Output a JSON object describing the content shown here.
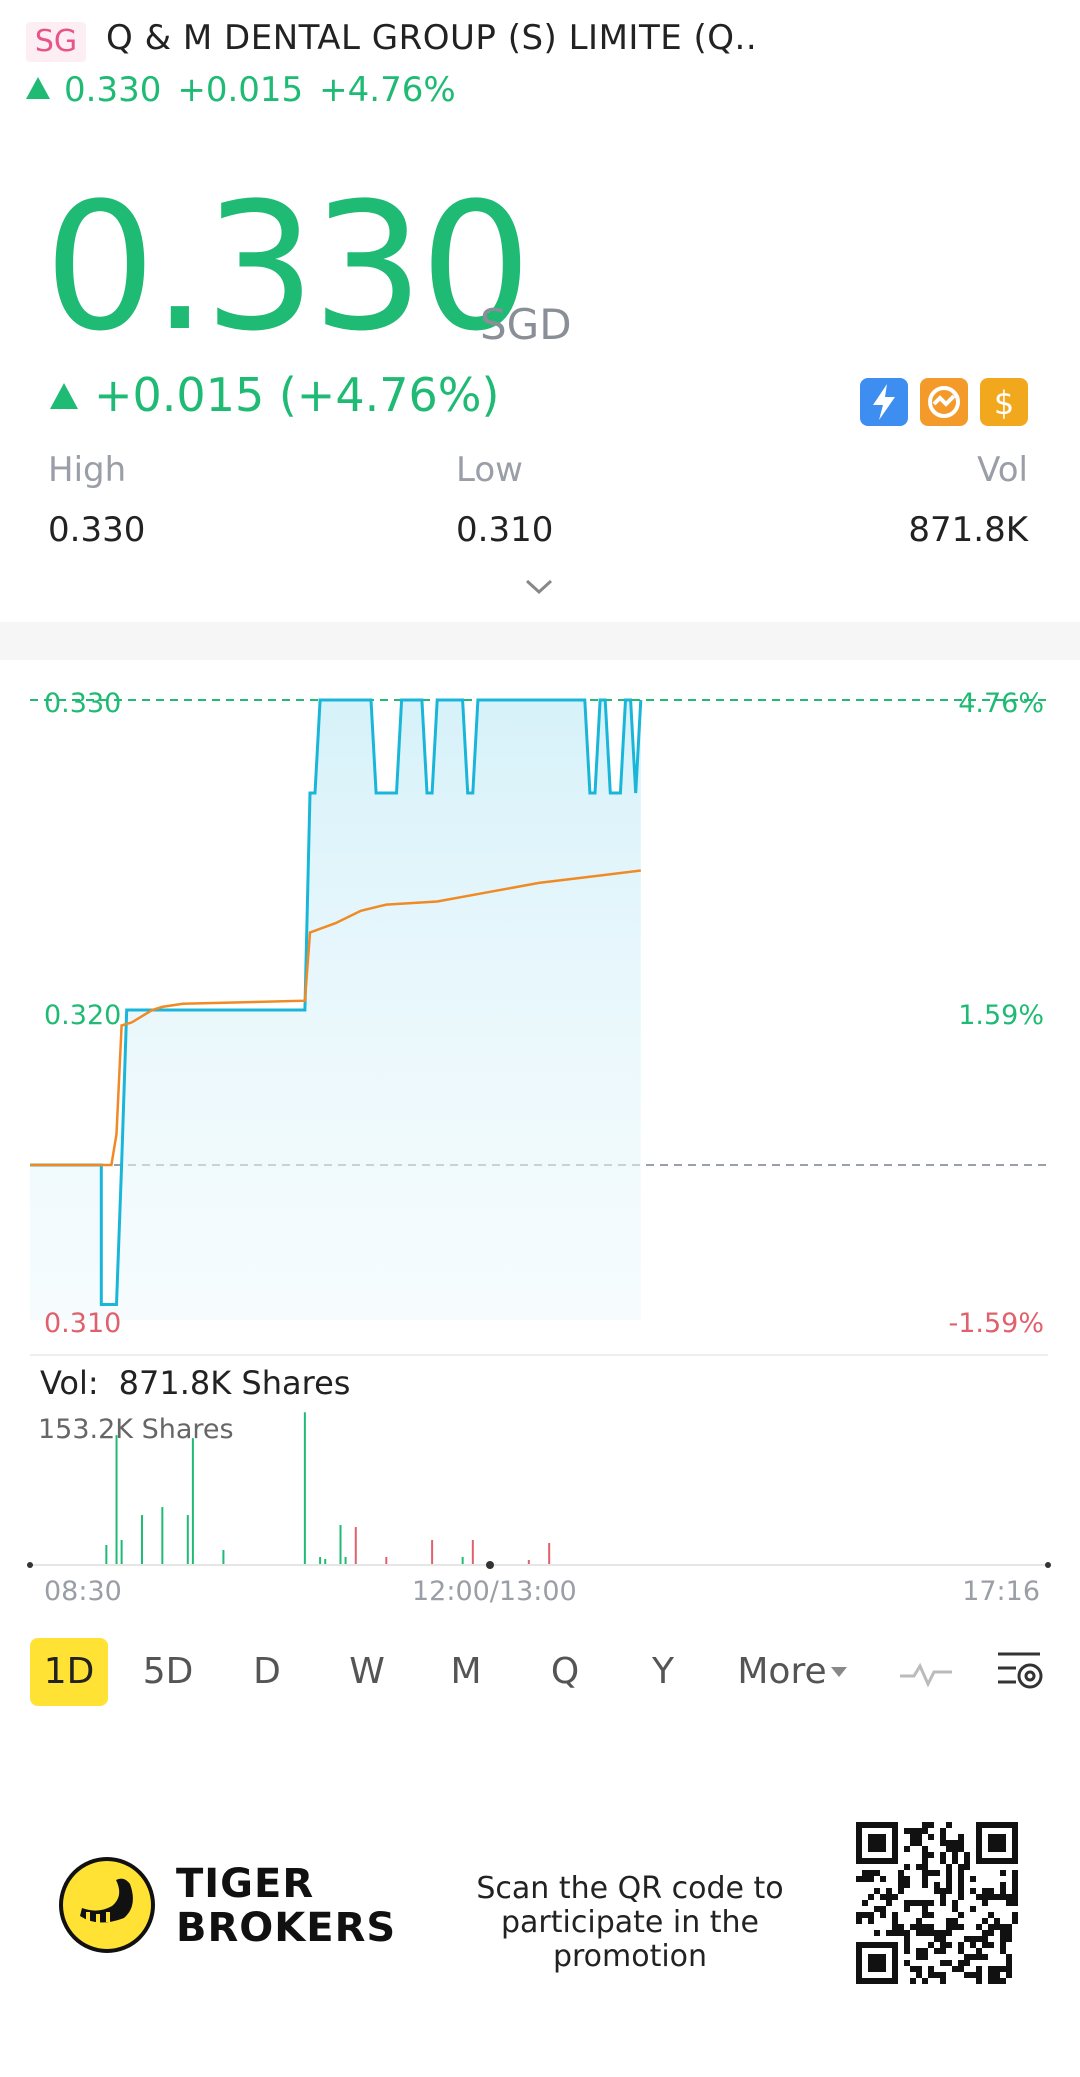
{
  "header": {
    "market_badge": "SG",
    "title": "Q & M DENTAL GROUP (S) LIMITE (Q..",
    "price": "0.330",
    "change": "+0.015",
    "change_pct": "+4.76%"
  },
  "quote": {
    "price": "0.330",
    "currency": "SGD",
    "change_text": "+0.015 (+4.76%)",
    "high_label": "High",
    "high_value": "0.330",
    "low_label": "Low",
    "low_value": "0.310",
    "vol_label": "Vol",
    "vol_value": "871.8K",
    "badge_icons": [
      "lightning-icon",
      "chart-swap-icon",
      "dollar-icon"
    ]
  },
  "chart_data": {
    "type": "line",
    "y_labels_left": [
      "0.330",
      "0.320",
      "0.310"
    ],
    "y_labels_right": [
      "4.76%",
      "1.59%",
      "-1.59%"
    ],
    "ylim": [
      0.31,
      0.33
    ],
    "prev_close": 0.315,
    "x_labels": [
      "08:30",
      "12:00/13:00",
      "17:16"
    ],
    "series": [
      {
        "color": "#1ab6d9",
        "x": [
          0,
          14,
          14,
          17,
          18,
          19,
          20,
          54,
          55,
          56,
          57,
          60,
          61,
          62,
          63,
          67,
          68,
          69,
          70,
          72,
          73,
          77,
          78,
          79,
          80,
          85,
          86,
          87,
          88,
          109,
          110,
          111,
          112,
          113,
          114,
          116,
          117,
          118,
          119,
          120
        ],
        "y": [
          0.315,
          0.315,
          0.3105,
          0.3105,
          0.315,
          0.32,
          0.32,
          0.32,
          0.327,
          0.327,
          0.33,
          0.33,
          0.33,
          0.33,
          0.33,
          0.33,
          0.327,
          0.327,
          0.327,
          0.327,
          0.33,
          0.33,
          0.327,
          0.327,
          0.33,
          0.33,
          0.327,
          0.327,
          0.33,
          0.33,
          0.327,
          0.327,
          0.33,
          0.33,
          0.327,
          0.327,
          0.33,
          0.33,
          0.327,
          0.33
        ]
      },
      {
        "color": "#f08a24",
        "x": [
          0,
          15,
          16,
          17,
          18,
          20,
          22,
          24,
          26,
          30,
          54,
          55,
          60,
          65,
          70,
          80,
          90,
          100,
          110,
          120
        ],
        "y": [
          0.315,
          0.315,
          0.315,
          0.316,
          0.3195,
          0.3196,
          0.3198,
          0.32,
          0.3201,
          0.3202,
          0.3203,
          0.3225,
          0.3228,
          0.3232,
          0.3234,
          0.3235,
          0.3238,
          0.3241,
          0.3243,
          0.3245
        ]
      }
    ],
    "volume": {
      "title_label": "Vol:",
      "title_value": "871.8K Shares",
      "max_label": "153.2K Shares",
      "max": 153.2,
      "bars": [
        {
          "x": 15,
          "v": 20,
          "color": "#1fba74"
        },
        {
          "x": 17,
          "v": 130,
          "color": "#1fba74"
        },
        {
          "x": 18,
          "v": 25,
          "color": "#1fba74"
        },
        {
          "x": 22,
          "v": 50,
          "color": "#1fba74"
        },
        {
          "x": 26,
          "v": 58,
          "color": "#1fba74"
        },
        {
          "x": 31,
          "v": 50,
          "color": "#1fba74"
        },
        {
          "x": 32,
          "v": 127,
          "color": "#1fba74"
        },
        {
          "x": 38,
          "v": 15,
          "color": "#1fba74"
        },
        {
          "x": 54,
          "v": 153,
          "color": "#1fba74"
        },
        {
          "x": 57,
          "v": 8,
          "color": "#1fba74"
        },
        {
          "x": 58,
          "v": 6,
          "color": "#1fba74"
        },
        {
          "x": 61,
          "v": 40,
          "color": "#1fba74"
        },
        {
          "x": 62,
          "v": 8,
          "color": "#1fba74"
        },
        {
          "x": 64,
          "v": 38,
          "color": "#e0606c"
        },
        {
          "x": 70,
          "v": 8,
          "color": "#e0606c"
        },
        {
          "x": 79,
          "v": 25,
          "color": "#e0606c"
        },
        {
          "x": 85,
          "v": 8,
          "color": "#1fba74"
        },
        {
          "x": 87,
          "v": 25,
          "color": "#e0606c"
        },
        {
          "x": 98,
          "v": 5,
          "color": "#e0606c"
        },
        {
          "x": 102,
          "v": 22,
          "color": "#e0606c"
        }
      ]
    }
  },
  "periods": [
    "1D",
    "5D",
    "D",
    "W",
    "M",
    "Q",
    "Y",
    "More"
  ],
  "period_active": "1D",
  "footer": {
    "brand_line1": "TIGER",
    "brand_line2": "BROKERS",
    "promo_line1": "Scan the QR code to",
    "promo_line2": "participate in the promotion"
  },
  "colors": {
    "up": "#1fba74",
    "down": "#e0606c",
    "price_line": "#1ab6d9",
    "avg_line": "#f08a24",
    "highlight": "#ffe233"
  }
}
